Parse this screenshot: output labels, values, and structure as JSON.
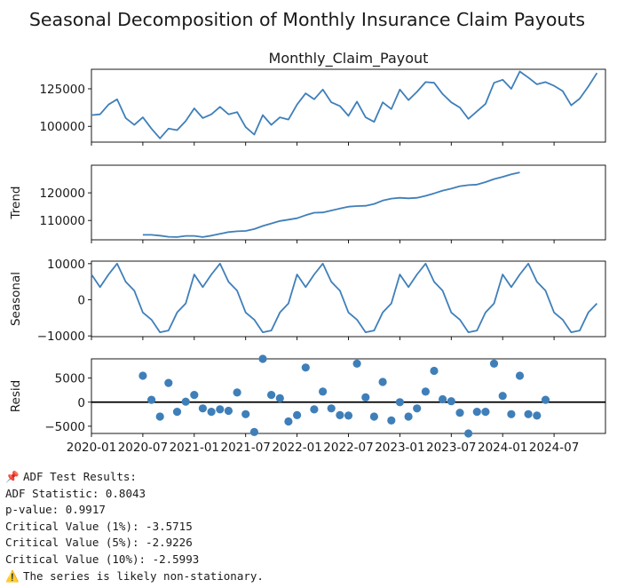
{
  "chart_data": {
    "type": "line",
    "title": "Seasonal Decomposition of Monthly Insurance Claim Payouts",
    "x_tick_labels": [
      "2020-01",
      "2020-07",
      "2021-01",
      "2021-07",
      "2022-01",
      "2022-07",
      "2023-01",
      "2023-07",
      "2024-01",
      "2024-07"
    ],
    "x_start": "2020-01",
    "panels": [
      {
        "key": "observed",
        "subtitle": "Monthly_Claim_Payout",
        "ylabel": "",
        "kind": "line",
        "ylim": [
          89500,
          138000
        ],
        "yticks": [
          100000,
          125000
        ],
        "ytick_labels": [
          "100000",
          "125000"
        ],
        "values": [
          107500,
          108000,
          114500,
          118000,
          105500,
          101000,
          106000,
          98500,
          92000,
          98500,
          97500,
          103500,
          112000,
          105500,
          108000,
          113000,
          108000,
          109500,
          99500,
          94500,
          107500,
          101000,
          106000,
          104500,
          114500,
          122000,
          118000,
          124500,
          116000,
          113500,
          107000,
          116500,
          106000,
          103000,
          116000,
          111500,
          124500,
          117500,
          123000,
          129500,
          129000,
          121500,
          116000,
          112500,
          105000,
          110000,
          115000,
          129000,
          131000,
          125000,
          136500,
          132500,
          128000,
          129500,
          127000,
          123500,
          114000,
          118500,
          126500,
          135500
        ]
      },
      {
        "key": "trend",
        "subtitle": "",
        "ylabel": "Trend",
        "kind": "line",
        "ylim": [
          103000,
          130000
        ],
        "yticks": [
          110000,
          120000
        ],
        "ytick_labels": [
          "110000",
          "120000"
        ],
        "values": [
          null,
          null,
          null,
          null,
          null,
          null,
          104800,
          104800,
          104500,
          104100,
          104000,
          104400,
          104400,
          104000,
          104500,
          105200,
          105800,
          106100,
          106200,
          106900,
          108000,
          108900,
          109800,
          110300,
          110800,
          111900,
          112800,
          112900,
          113600,
          114300,
          115000,
          115200,
          115300,
          116000,
          117200,
          117900,
          118200,
          118000,
          118200,
          118900,
          119800,
          120800,
          121500,
          122400,
          122800,
          123000,
          123900,
          125000,
          125800,
          126700,
          127400,
          null,
          null,
          null,
          null,
          null,
          null,
          null,
          null,
          null
        ]
      },
      {
        "key": "seasonal",
        "subtitle": "",
        "ylabel": "Seasonal",
        "kind": "line",
        "ylim": [
          -10200,
          10700
        ],
        "yticks": [
          -10000,
          0,
          10000
        ],
        "ytick_labels": [
          "−10000",
          "0",
          "10000"
        ],
        "values": [
          7000,
          3500,
          7000,
          10000,
          5000,
          2500,
          -3500,
          -5500,
          -9000,
          -8500,
          -3500,
          -1000,
          7000,
          3500,
          7000,
          10000,
          5000,
          2500,
          -3500,
          -5500,
          -9000,
          -8500,
          -3500,
          -1000,
          7000,
          3500,
          7000,
          10000,
          5000,
          2500,
          -3500,
          -5500,
          -9000,
          -8500,
          -3500,
          -1000,
          7000,
          3500,
          7000,
          10000,
          5000,
          2500,
          -3500,
          -5500,
          -9000,
          -8500,
          -3500,
          -1000,
          7000,
          3500,
          7000,
          10000,
          5000,
          2500,
          -3500,
          -5500,
          -9000,
          -8500,
          -3500,
          -1000
        ]
      },
      {
        "key": "resid",
        "subtitle": "",
        "ylabel": "Resid",
        "kind": "scatter",
        "baseline": 0,
        "ylim": [
          -6500,
          9000
        ],
        "yticks": [
          -5000,
          0,
          5000
        ],
        "ytick_labels": [
          "−5000",
          "0",
          "5000"
        ],
        "values": [
          null,
          null,
          null,
          null,
          null,
          null,
          5500,
          500,
          -3000,
          4000,
          -2000,
          100,
          1500,
          -1300,
          -2000,
          -1500,
          -1800,
          2000,
          -2500,
          -6200,
          9000,
          1500,
          800,
          -4000,
          -2700,
          7200,
          -1500,
          2200,
          -1300,
          -2700,
          -2800,
          8000,
          1000,
          -3000,
          4200,
          -3800,
          0,
          -3000,
          -1300,
          2200,
          6500,
          600,
          200,
          -2200,
          -6500,
          -2000,
          -2000,
          8000,
          1300,
          -2500,
          5500,
          -2500,
          -2800,
          500,
          null,
          null,
          null,
          null,
          null,
          null
        ]
      }
    ]
  },
  "output": {
    "adf_header": "ADF Test Results:",
    "lines": [
      "ADF Statistic: 0.8043",
      "p-value: 0.9917",
      "Critical Value (1%): -3.5715",
      "Critical Value (5%): -2.9226",
      "Critical Value (10%): -2.5993"
    ],
    "conclusion": "The series is likely non-stationary.",
    "header_icon": "pushpin-icon",
    "conclusion_icon": "warning-icon"
  },
  "colors": {
    "line": "#3f7fb9",
    "marker": "#3f7fb9",
    "baseline": "#000000",
    "text": "#1a1a1a"
  }
}
